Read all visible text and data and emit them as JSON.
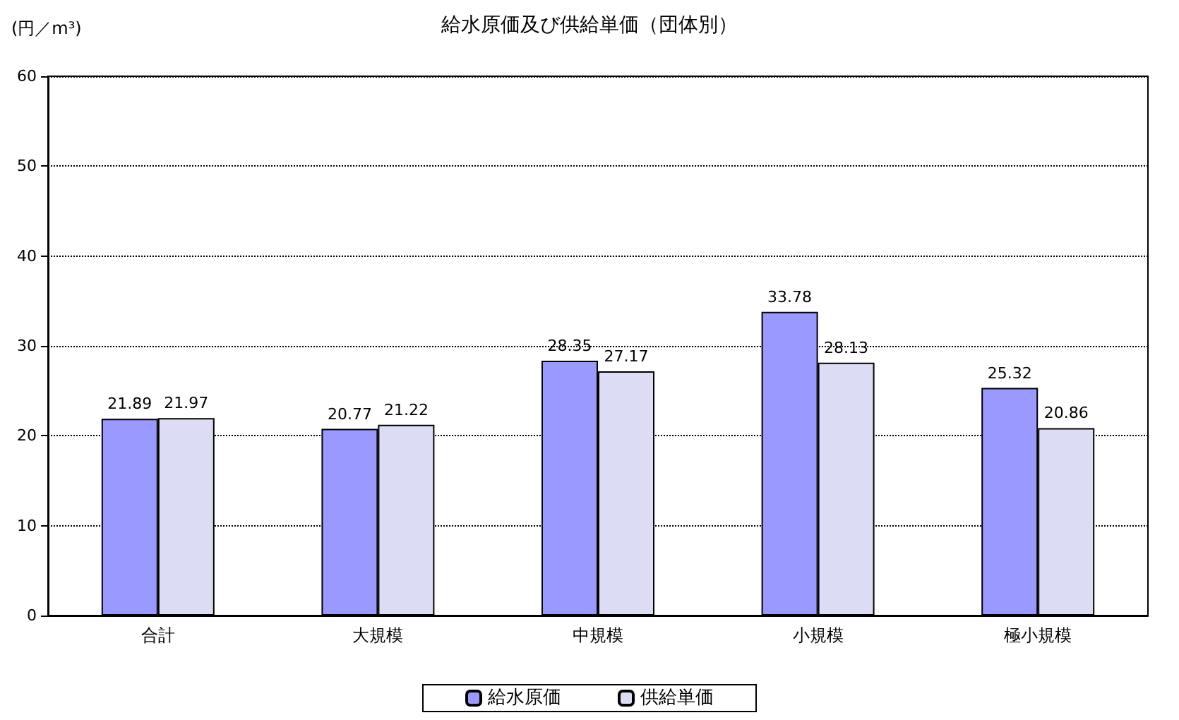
{
  "chart_data": {
    "type": "bar",
    "title": "給水原価及び供給単価（団体別）",
    "ylabel": "(円／m³)",
    "categories": [
      "合計",
      "大規模",
      "中規模",
      "小規模",
      "極小規模"
    ],
    "series": [
      {
        "name": "給水原価",
        "color": "#9999ff",
        "values": [
          21.89,
          20.77,
          28.35,
          33.78,
          25.32
        ]
      },
      {
        "name": "供給単価",
        "color": "#dcdcf4",
        "values": [
          21.97,
          21.22,
          27.17,
          28.13,
          20.86
        ]
      }
    ],
    "ylim": [
      0,
      60
    ],
    "yticks": [
      0,
      10,
      20,
      30,
      40,
      50,
      60
    ],
    "grid": "y",
    "legend": "bottom",
    "data_labels": true
  }
}
